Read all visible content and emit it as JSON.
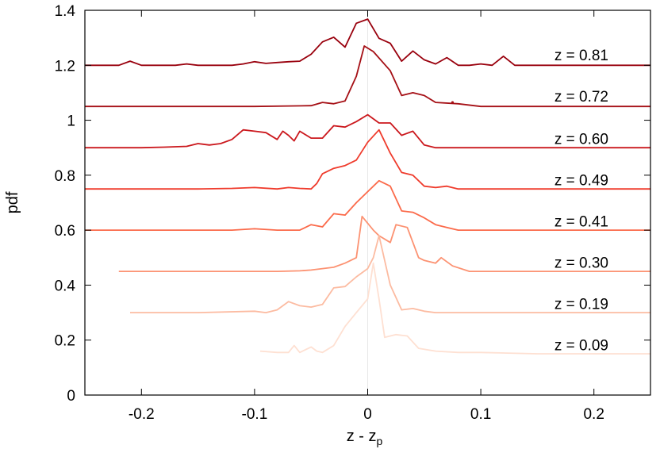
{
  "chart_data": {
    "type": "line",
    "xlabel": "z - z",
    "xlabel_subscript": "p",
    "ylabel": "pdf",
    "xlim": [
      -0.25,
      0.25
    ],
    "ylim": [
      0,
      1.4
    ],
    "xticks": [
      -0.2,
      -0.1,
      0,
      0.1,
      0.2
    ],
    "xtick_labels": [
      "-0.2",
      "-0.1",
      "0",
      "0.1",
      "0.2"
    ],
    "yticks": [
      0,
      0.2,
      0.4,
      0.6,
      0.8,
      1,
      1.2,
      1.4
    ],
    "ytick_labels": [
      "0",
      "0.2",
      "0.4",
      "0.6",
      "0.8",
      "1",
      "1.2",
      "1.4"
    ],
    "reference_line_x": 0,
    "reference_line_color": "#e8e8e8",
    "grid": false,
    "series": [
      {
        "name": "z = 0.81",
        "color": "#99000d",
        "label_y": 1.21,
        "x": [
          -0.25,
          -0.22,
          -0.21,
          -0.2,
          -0.19,
          -0.17,
          -0.16,
          -0.15,
          -0.13,
          -0.12,
          -0.11,
          -0.1,
          -0.09,
          -0.08,
          -0.07,
          -0.06,
          -0.05,
          -0.04,
          -0.03,
          -0.02,
          -0.01,
          0,
          0.01,
          0.02,
          0.03,
          0.04,
          0.05,
          0.06,
          0.07,
          0.08,
          0.09,
          0.1,
          0.11,
          0.12,
          0.13,
          0.15,
          0.2,
          0.25
        ],
        "y": [
          1.2,
          1.2,
          1.215,
          1.2,
          1.2,
          1.2,
          1.205,
          1.2,
          1.2,
          1.2,
          1.205,
          1.213,
          1.207,
          1.21,
          1.213,
          1.215,
          1.24,
          1.285,
          1.302,
          1.266,
          1.353,
          1.368,
          1.298,
          1.28,
          1.215,
          1.252,
          1.22,
          1.205,
          1.228,
          1.2,
          1.2,
          1.205,
          1.2,
          1.233,
          1.2,
          1.2,
          1.2,
          1.2
        ]
      },
      {
        "name": "z = 0.72",
        "color": "#a50f15",
        "label_y": 1.06,
        "x": [
          -0.25,
          -0.2,
          -0.15,
          -0.1,
          -0.07,
          -0.05,
          -0.04,
          -0.03,
          -0.02,
          -0.01,
          -0.003,
          0.005,
          0.02,
          0.03,
          0.04,
          0.05,
          0.06,
          0.08,
          0.1,
          0.15,
          0.2,
          0.25
        ],
        "y": [
          1.05,
          1.05,
          1.05,
          1.05,
          1.052,
          1.053,
          1.065,
          1.06,
          1.07,
          1.16,
          1.27,
          1.25,
          1.18,
          1.09,
          1.1,
          1.09,
          1.065,
          1.06,
          1.05,
          1.05,
          1.05,
          1.05
        ],
        "dot": {
          "x": 0.075,
          "y": 1.065
        }
      },
      {
        "name": "z = 0.60",
        "color": "#cb181d",
        "label_y": 0.905,
        "x": [
          -0.25,
          -0.2,
          -0.18,
          -0.16,
          -0.15,
          -0.14,
          -0.13,
          -0.12,
          -0.11,
          -0.1,
          -0.09,
          -0.08,
          -0.075,
          -0.07,
          -0.065,
          -0.06,
          -0.05,
          -0.04,
          -0.03,
          -0.02,
          -0.01,
          0,
          0.01,
          0.02,
          0.03,
          0.04,
          0.05,
          0.06,
          0.08,
          0.1,
          0.15,
          0.2,
          0.25
        ],
        "y": [
          0.9,
          0.9,
          0.902,
          0.905,
          0.915,
          0.91,
          0.915,
          0.93,
          0.965,
          0.96,
          0.955,
          0.93,
          0.96,
          0.945,
          0.925,
          0.96,
          0.935,
          0.935,
          0.98,
          0.975,
          0.995,
          1.02,
          0.99,
          0.99,
          0.945,
          0.96,
          0.91,
          0.9,
          0.9,
          0.9,
          0.9,
          0.9,
          0.9
        ]
      },
      {
        "name": "z = 0.49",
        "color": "#ef3b2c",
        "label_y": 0.755,
        "x": [
          -0.25,
          -0.2,
          -0.15,
          -0.12,
          -0.1,
          -0.08,
          -0.07,
          -0.06,
          -0.05,
          -0.045,
          -0.04,
          -0.03,
          -0.02,
          -0.01,
          0,
          0.01,
          0.02,
          0.03,
          0.04,
          0.05,
          0.06,
          0.07,
          0.08,
          0.1,
          0.15,
          0.2,
          0.25
        ],
        "y": [
          0.75,
          0.75,
          0.75,
          0.752,
          0.755,
          0.75,
          0.755,
          0.752,
          0.75,
          0.77,
          0.805,
          0.825,
          0.835,
          0.855,
          0.92,
          0.965,
          0.88,
          0.81,
          0.8,
          0.76,
          0.755,
          0.76,
          0.75,
          0.75,
          0.75,
          0.75,
          0.75
        ]
      },
      {
        "name": "z = 0.41",
        "color": "#fb6a4a",
        "label_y": 0.605,
        "x": [
          -0.25,
          -0.2,
          -0.15,
          -0.12,
          -0.1,
          -0.08,
          -0.07,
          -0.06,
          -0.05,
          -0.04,
          -0.03,
          -0.02,
          -0.01,
          0,
          0.01,
          0.02,
          0.03,
          0.04,
          0.05,
          0.06,
          0.07,
          0.08,
          0.1,
          0.15,
          0.2,
          0.25
        ],
        "y": [
          0.6,
          0.6,
          0.6,
          0.6,
          0.605,
          0.6,
          0.6,
          0.6,
          0.62,
          0.612,
          0.66,
          0.655,
          0.7,
          0.74,
          0.78,
          0.76,
          0.67,
          0.665,
          0.645,
          0.62,
          0.61,
          0.6,
          0.6,
          0.6,
          0.6,
          0.6
        ]
      },
      {
        "name": "z = 0.30",
        "color": "#fc9272",
        "label_y": 0.455,
        "x": [
          -0.22,
          -0.2,
          -0.15,
          -0.1,
          -0.08,
          -0.06,
          -0.05,
          -0.04,
          -0.03,
          -0.02,
          -0.01,
          -0.005,
          0.005,
          0.01,
          0.02,
          0.025,
          0.035,
          0.045,
          0.05,
          0.06,
          0.065,
          0.075,
          0.09,
          0.1,
          0.15,
          0.2,
          0.25
        ],
        "y": [
          0.45,
          0.45,
          0.45,
          0.45,
          0.45,
          0.452,
          0.455,
          0.46,
          0.465,
          0.48,
          0.5,
          0.65,
          0.6,
          0.58,
          0.555,
          0.62,
          0.61,
          0.5,
          0.49,
          0.48,
          0.5,
          0.47,
          0.45,
          0.45,
          0.45,
          0.45,
          0.45
        ]
      },
      {
        "name": "z = 0.19",
        "color": "#fcbba1",
        "label_y": 0.305,
        "x": [
          -0.21,
          -0.2,
          -0.15,
          -0.1,
          -0.09,
          -0.08,
          -0.07,
          -0.06,
          -0.05,
          -0.04,
          -0.03,
          -0.02,
          -0.01,
          0,
          0.005,
          0.01,
          0.02,
          0.03,
          0.04,
          0.05,
          0.06,
          0.08,
          0.1,
          0.15,
          0.2,
          0.25
        ],
        "y": [
          0.3,
          0.3,
          0.3,
          0.305,
          0.3,
          0.31,
          0.34,
          0.325,
          0.32,
          0.33,
          0.39,
          0.395,
          0.43,
          0.46,
          0.5,
          0.58,
          0.4,
          0.31,
          0.315,
          0.305,
          0.3,
          0.3,
          0.3,
          0.3,
          0.3,
          0.3
        ]
      },
      {
        "name": "z = 0.09",
        "color": "#fee0d2",
        "label_y": 0.155,
        "x": [
          -0.095,
          -0.08,
          -0.07,
          -0.065,
          -0.06,
          -0.05,
          -0.045,
          -0.04,
          -0.03,
          -0.02,
          -0.01,
          0,
          0.005,
          0.01,
          0.015,
          0.025,
          0.035,
          0.045,
          0.06,
          0.08,
          0.1,
          0.15,
          0.2,
          0.25
        ],
        "y": [
          0.16,
          0.155,
          0.155,
          0.18,
          0.155,
          0.175,
          0.16,
          0.155,
          0.18,
          0.25,
          0.3,
          0.35,
          0.48,
          0.35,
          0.21,
          0.22,
          0.215,
          0.17,
          0.16,
          0.155,
          0.155,
          0.15,
          0.15,
          0.15
        ]
      }
    ]
  }
}
